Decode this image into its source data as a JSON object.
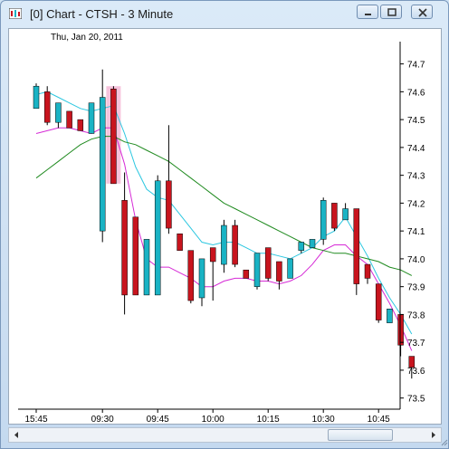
{
  "window": {
    "title": "[0]  Chart - CTSH - 3 Minute",
    "buttons": [
      "minimize",
      "maximize",
      "close"
    ]
  },
  "header": {
    "date_label": "Thu, Jan 20, 2011"
  },
  "colors": {
    "up_candle": "#1ab3c4",
    "down_candle": "#c8141e",
    "fast_ma": "#2cc7e0",
    "medium_ma": "#d62ad6",
    "slow_ma": "#1f8a1f",
    "highlight": "#f4b9d6"
  },
  "chart_data": {
    "type": "candlestick",
    "symbol": "CTSH",
    "interval": "3 Minute",
    "date": "Thu, Jan 20, 2011",
    "ylim": [
      73.46,
      74.78
    ],
    "y_ticks": [
      73.5,
      73.6,
      73.7,
      73.8,
      73.9,
      74.0,
      74.1,
      74.2,
      74.3,
      74.4,
      74.5,
      74.6,
      74.7
    ],
    "x_ticks": [
      {
        "label": "15:45",
        "index": 0
      },
      {
        "label": "09:30",
        "index": 6
      },
      {
        "label": "09:45",
        "index": 11
      },
      {
        "label": "10:00",
        "index": 16
      },
      {
        "label": "10:15",
        "index": 21
      },
      {
        "label": "10:30",
        "index": 26
      },
      {
        "label": "10:45",
        "index": 31
      }
    ],
    "candles": [
      {
        "o": 74.54,
        "h": 74.63,
        "l": 74.54,
        "c": 74.62
      },
      {
        "o": 74.6,
        "h": 74.62,
        "l": 74.48,
        "c": 74.49
      },
      {
        "o": 74.49,
        "h": 74.56,
        "l": 74.47,
        "c": 74.56
      },
      {
        "o": 74.53,
        "h": 74.53,
        "l": 74.47,
        "c": 74.47
      },
      {
        "o": 74.5,
        "h": 74.5,
        "l": 74.46,
        "c": 74.46
      },
      {
        "o": 74.45,
        "h": 74.56,
        "l": 74.45,
        "c": 74.56
      },
      {
        "o": 74.1,
        "h": 74.68,
        "l": 74.06,
        "c": 74.58
      },
      {
        "o": 74.61,
        "h": 74.62,
        "l": 74.27,
        "c": 74.27
      },
      {
        "o": 74.21,
        "h": 74.31,
        "l": 73.8,
        "c": 73.87
      },
      {
        "o": 74.15,
        "h": 74.15,
        "l": 73.87,
        "c": 73.87
      },
      {
        "o": 73.87,
        "h": 74.07,
        "l": 73.87,
        "c": 74.07
      },
      {
        "o": 73.87,
        "h": 74.3,
        "l": 73.87,
        "c": 74.28
      },
      {
        "o": 74.28,
        "h": 74.48,
        "l": 74.09,
        "c": 74.11
      },
      {
        "o": 74.09,
        "h": 74.09,
        "l": 74.03,
        "c": 74.03
      },
      {
        "o": 74.03,
        "h": 74.03,
        "l": 73.84,
        "c": 73.85
      },
      {
        "o": 73.86,
        "h": 74.0,
        "l": 73.83,
        "c": 74.0
      },
      {
        "o": 74.04,
        "h": 74.04,
        "l": 73.85,
        "c": 73.99
      },
      {
        "o": 73.98,
        "h": 74.14,
        "l": 73.95,
        "c": 74.12
      },
      {
        "o": 74.12,
        "h": 74.14,
        "l": 73.97,
        "c": 73.98
      },
      {
        "o": 73.96,
        "h": 73.96,
        "l": 73.93,
        "c": 73.93
      },
      {
        "o": 73.9,
        "h": 74.02,
        "l": 73.89,
        "c": 74.02
      },
      {
        "o": 74.04,
        "h": 74.04,
        "l": 73.92,
        "c": 73.93
      },
      {
        "o": 73.99,
        "h": 73.99,
        "l": 73.89,
        "c": 73.92
      },
      {
        "o": 73.93,
        "h": 74.0,
        "l": 73.93,
        "c": 74.0
      },
      {
        "o": 74.03,
        "h": 74.06,
        "l": 74.02,
        "c": 74.06
      },
      {
        "o": 74.04,
        "h": 74.07,
        "l": 74.04,
        "c": 74.07
      },
      {
        "o": 74.07,
        "h": 74.22,
        "l": 74.05,
        "c": 74.21
      },
      {
        "o": 74.2,
        "h": 74.2,
        "l": 74.1,
        "c": 74.11
      },
      {
        "o": 74.14,
        "h": 74.2,
        "l": 74.14,
        "c": 74.18
      },
      {
        "o": 74.18,
        "h": 74.18,
        "l": 73.87,
        "c": 73.91
      },
      {
        "o": 73.98,
        "h": 73.98,
        "l": 73.91,
        "c": 73.93
      },
      {
        "o": 73.91,
        "h": 73.91,
        "l": 73.77,
        "c": 73.78
      },
      {
        "o": 73.77,
        "h": 73.82,
        "l": 73.77,
        "c": 73.82
      },
      {
        "o": 73.8,
        "h": 73.8,
        "l": 73.65,
        "c": 73.69
      },
      {
        "o": 73.65,
        "h": 73.65,
        "l": 73.57,
        "c": 73.61
      }
    ],
    "series": [
      {
        "values": [
          74.59,
          74.6,
          74.58,
          74.56,
          74.54,
          74.53,
          74.54,
          74.55,
          74.45,
          74.33,
          74.25,
          74.22,
          74.21,
          74.16,
          74.11,
          74.06,
          74.05,
          74.06,
          74.06,
          74.04,
          74.02,
          74.02,
          74.01,
          74.0,
          74.02,
          74.04,
          74.08,
          74.1,
          74.15,
          74.08,
          74.01,
          73.93,
          73.86,
          73.8,
          73.73
        ]
      },
      {
        "values": [
          74.45,
          74.46,
          74.47,
          74.47,
          74.46,
          74.45,
          74.47,
          74.47,
          74.34,
          74.14,
          74.0,
          73.97,
          73.97,
          73.95,
          73.93,
          73.9,
          73.9,
          73.92,
          73.93,
          73.93,
          73.92,
          73.92,
          73.91,
          73.92,
          73.94,
          73.98,
          74.03,
          74.05,
          74.05,
          74.01,
          73.98,
          73.91,
          73.84,
          73.76,
          73.67
        ]
      },
      {
        "values": [
          74.29,
          74.32,
          74.35,
          74.38,
          74.41,
          74.43,
          74.44,
          74.44,
          74.42,
          74.41,
          74.39,
          74.37,
          74.35,
          74.32,
          74.29,
          74.26,
          74.23,
          74.2,
          74.18,
          74.16,
          74.14,
          74.12,
          74.1,
          74.08,
          74.06,
          74.04,
          74.03,
          74.02,
          74.02,
          74.01,
          74.0,
          73.99,
          73.97,
          73.96,
          73.94
        ]
      }
    ]
  }
}
